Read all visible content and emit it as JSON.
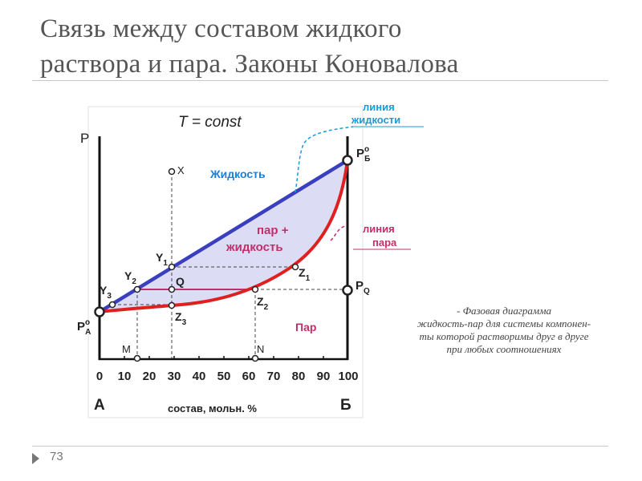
{
  "slide": {
    "title_line1": "Связь между составом жидкого",
    "title_line2": "раствора и пара. Законы Коновалова",
    "page_number": "73"
  },
  "diagram": {
    "condition": "T = const",
    "y_axis_label": "P",
    "x_axis_label": "состав, мольн. %",
    "x_ticks": [
      "0",
      "10",
      "20",
      "30",
      "40",
      "50",
      "60",
      "70",
      "80",
      "90",
      "100"
    ],
    "component_a": "А",
    "component_b": "Б",
    "liquid_region": "Жидкость",
    "two_phase_region_line1": "пар +",
    "two_phase_region_line2": "жидкость",
    "vapor_region": "Пар",
    "liquid_line_label_1": "линия",
    "liquid_line_label_2": "жидкости",
    "vapor_line_label_1": "линия",
    "vapor_line_label_2": "пара",
    "pressure_a": "P",
    "pressure_a_sup": "o",
    "pressure_a_sub": "A",
    "pressure_b": "P",
    "pressure_b_sup": "o",
    "pressure_b_sub": "Б",
    "pressure_q": "P",
    "pressure_q_sub": "Q",
    "points": {
      "x": "X",
      "q": "Q",
      "m": "M",
      "n": "N",
      "y1": "Y",
      "y1_sub": "1",
      "y2": "Y",
      "y2_sub": "2",
      "y3": "Y",
      "y3_sub": "3",
      "z1": "Z",
      "z1_sub": "1",
      "z2": "Z",
      "z2_sub": "2",
      "z3": "Z",
      "z3_sub": "3"
    },
    "colors": {
      "liquid_line": "#3a3fc0",
      "vapor_line": "#e02020",
      "two_phase_fill": "#dcdcf4",
      "liquid_label": "#1a7fd8",
      "two_phase_label": "#c0306a",
      "vapor_label": "#c0306a",
      "liquid_callout": "#1a9ad8",
      "vapor_callout": "#c0306a"
    }
  },
  "caption": {
    "line1": "- Фазовая диаграмма",
    "line2": "жидкость-пар для системы компонен-",
    "line3": "ты которой растворимы друг в друге",
    "line4": "при любых соотношениях"
  }
}
